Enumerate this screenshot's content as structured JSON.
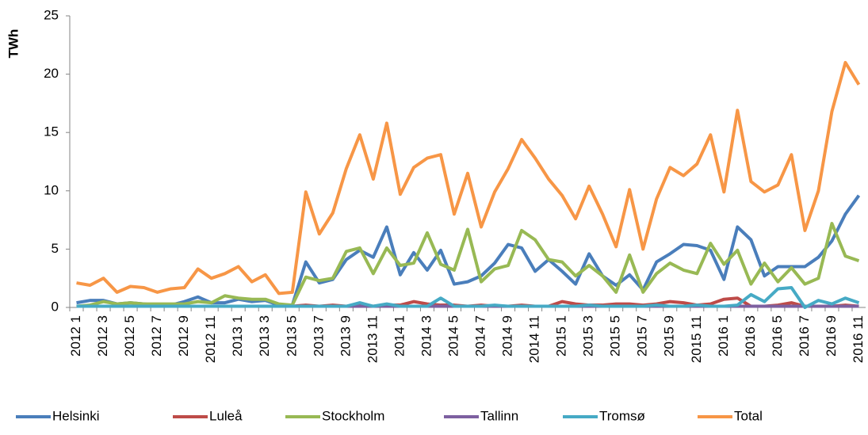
{
  "chart_data": {
    "type": "line",
    "y_label": "TWh",
    "categories": [
      "2012 1",
      null,
      "2012 3",
      null,
      "2012 5",
      null,
      "2012 7",
      null,
      "2012 9",
      null,
      "2012 11",
      null,
      "2013 1",
      null,
      "2013 3",
      null,
      "2013 5",
      null,
      "2013 7",
      null,
      "2013 9",
      null,
      "2013 11",
      null,
      "2014 1",
      null,
      "2014 3",
      null,
      "2014 5",
      null,
      "2014 7",
      null,
      "2014 9",
      null,
      "2014 11",
      null,
      "2015 1",
      null,
      "2015 3",
      null,
      "2015 5",
      null,
      "2015 7",
      null,
      "2015 9",
      null,
      "2015 11",
      null,
      "2016 1",
      null,
      "2016 3",
      null,
      "2016 5",
      null,
      "2016 7",
      null,
      "2016 9",
      null,
      "2016 11"
    ],
    "series": [
      {
        "name": "Helsinki",
        "color": "#4a7ebb",
        "values": [
          0.4,
          0.6,
          0.6,
          0.3,
          0.4,
          0.3,
          0.2,
          0.2,
          0.5,
          0.9,
          0.4,
          0.4,
          0.7,
          0.5,
          0.6,
          0.2,
          0.2,
          3.9,
          2.1,
          2.4,
          4.1,
          4.9,
          4.3,
          6.9,
          2.8,
          4.7,
          3.2,
          4.9,
          2.0,
          2.2,
          2.7,
          3.8,
          5.4,
          5.1,
          3.1,
          4.1,
          3.1,
          2.0,
          4.6,
          2.7,
          1.9,
          2.8,
          1.5,
          3.9,
          4.6,
          5.4,
          5.3,
          4.9,
          2.4,
          6.9,
          5.8,
          2.7,
          3.5,
          3.5,
          3.5,
          4.3,
          5.7,
          8.0,
          9.6
        ]
      },
      {
        "name": "Luleå",
        "color": "#be4b48",
        "values": [
          0.1,
          0.1,
          0.1,
          0.1,
          0.1,
          0.1,
          0.1,
          0.1,
          0.1,
          0.1,
          0.1,
          0.1,
          0.1,
          0.1,
          0.1,
          0.1,
          0.1,
          0.2,
          0.1,
          0.2,
          0.1,
          0.2,
          0.1,
          0.2,
          0.2,
          0.5,
          0.3,
          0.2,
          0.2,
          0.1,
          0.2,
          0.1,
          0.1,
          0.2,
          0.1,
          0.1,
          0.5,
          0.3,
          0.2,
          0.2,
          0.3,
          0.3,
          0.2,
          0.3,
          0.5,
          0.4,
          0.2,
          0.3,
          0.7,
          0.8,
          0.1,
          0.1,
          0.2,
          0.4,
          0.1,
          0.1,
          0.1,
          0.2,
          0.1
        ]
      },
      {
        "name": "Stockholm",
        "color": "#98b954",
        "values": [
          0.1,
          0.2,
          0.5,
          0.3,
          0.4,
          0.3,
          0.3,
          0.3,
          0.3,
          0.5,
          0.4,
          1.0,
          0.8,
          0.7,
          0.7,
          0.3,
          0.2,
          2.6,
          2.3,
          2.5,
          4.8,
          5.1,
          2.9,
          5.1,
          3.6,
          3.8,
          6.4,
          3.7,
          3.2,
          6.7,
          2.2,
          3.3,
          3.6,
          6.6,
          5.8,
          4.1,
          3.9,
          2.7,
          3.6,
          2.7,
          1.3,
          4.5,
          1.3,
          2.9,
          3.8,
          3.2,
          2.9,
          5.5,
          3.7,
          4.9,
          2.0,
          3.8,
          2.2,
          3.4,
          2.0,
          2.5,
          7.2,
          4.4,
          4.0
        ]
      },
      {
        "name": "Tallinn",
        "color": "#7d60a0",
        "values": [
          0.1,
          0.1,
          0.1,
          0.1,
          0.1,
          0.1,
          0.1,
          0.1,
          0.1,
          0.1,
          0.1,
          0.1,
          0.1,
          0.1,
          0.1,
          0.1,
          0.1,
          0.1,
          0.1,
          0.1,
          0.1,
          0.1,
          0.1,
          0.1,
          0.1,
          0.1,
          0.1,
          0.1,
          0.1,
          0.1,
          0.1,
          0.1,
          0.1,
          0.1,
          0.1,
          0.1,
          0.1,
          0.1,
          0.1,
          0.1,
          0.1,
          0.1,
          0.1,
          0.1,
          0.1,
          0.1,
          0.1,
          0.1,
          0.1,
          0.1,
          0.1,
          0.1,
          0.1,
          0.1,
          0.1,
          0.1,
          0.1,
          0.1,
          0.1
        ]
      },
      {
        "name": "Tromsø",
        "color": "#46aac5",
        "values": [
          0.1,
          0.1,
          0.1,
          0.1,
          0.1,
          0.1,
          0.1,
          0.1,
          0.1,
          0.1,
          0.1,
          0.1,
          0.1,
          0.1,
          0.1,
          0.1,
          0.1,
          0.1,
          0.1,
          0.1,
          0.1,
          0.4,
          0.1,
          0.3,
          0.1,
          0.1,
          0.1,
          0.8,
          0.1,
          0.1,
          0.1,
          0.2,
          0.1,
          0.1,
          0.1,
          0.1,
          0.1,
          0.1,
          0.2,
          0.1,
          0.1,
          0.1,
          0.1,
          0.2,
          0.1,
          0.1,
          0.2,
          0.1,
          0.1,
          0.2,
          1.1,
          0.5,
          1.6,
          1.7,
          0.0,
          0.6,
          0.3,
          0.8,
          0.4
        ]
      },
      {
        "name": "Total",
        "color": "#f79646",
        "values": [
          2.1,
          1.9,
          2.5,
          1.3,
          1.8,
          1.7,
          1.3,
          1.6,
          1.7,
          3.3,
          2.5,
          2.9,
          3.5,
          2.2,
          2.8,
          1.2,
          1.3,
          9.9,
          6.3,
          8.1,
          11.9,
          14.8,
          11.0,
          15.8,
          9.7,
          12.0,
          12.8,
          13.1,
          8.0,
          11.5,
          6.9,
          9.9,
          11.9,
          14.4,
          12.8,
          11.0,
          9.6,
          7.6,
          10.4,
          8.0,
          5.2,
          10.1,
          5.0,
          9.3,
          12.0,
          11.3,
          12.3,
          14.8,
          9.9,
          16.9,
          10.8,
          9.9,
          10.5,
          13.1,
          6.6,
          10.0,
          16.8,
          21.0,
          19.1
        ]
      }
    ],
    "ylim": [
      0,
      25
    ],
    "yticks": [
      0,
      5,
      10,
      15,
      20,
      25
    ],
    "grid": false,
    "legend": "bottom"
  }
}
